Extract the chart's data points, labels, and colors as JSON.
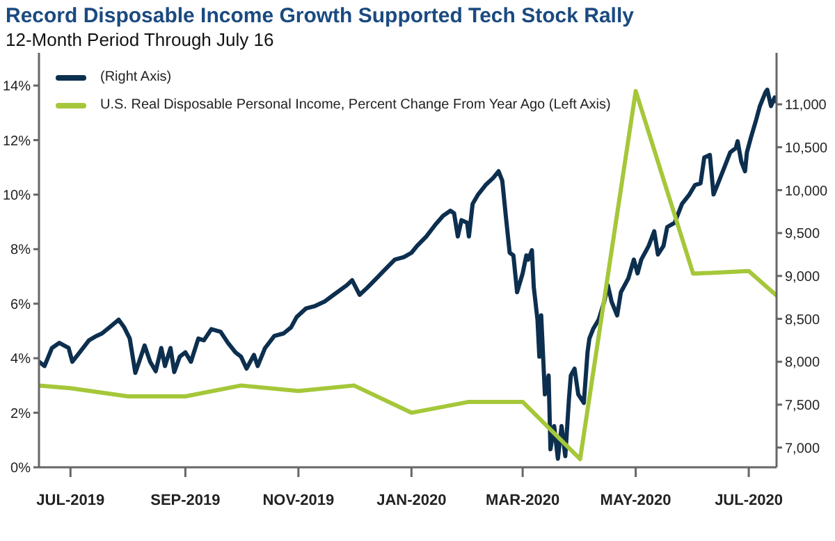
{
  "chart_data": {
    "type": "line",
    "title": "Record Disposable Income Growth Supported Tech Stock Rally",
    "subtitle": "12-Month Period Through July 16",
    "xlim": [
      "2019-06-14",
      "2020-07-16"
    ],
    "xticks": [
      {
        "value": "2019-07-01",
        "label": "JUL-2019"
      },
      {
        "value": "2019-09-01",
        "label": "SEP-2019"
      },
      {
        "value": "2019-11-01",
        "label": "NOV-2019"
      },
      {
        "value": "2020-01-01",
        "label": "JAN-2020"
      },
      {
        "value": "2020-03-01",
        "label": "MAR-2020"
      },
      {
        "value": "2020-05-01",
        "label": "MAY-2020"
      },
      {
        "value": "2020-07-01",
        "label": "JUL-2020"
      }
    ],
    "ylim": [
      0,
      15.2
    ],
    "yticks": [
      {
        "value": 0,
        "label": "0%"
      },
      {
        "value": 2,
        "label": "2%"
      },
      {
        "value": 4,
        "label": "4%"
      },
      {
        "value": 6,
        "label": "6%"
      },
      {
        "value": 8,
        "label": "8%"
      },
      {
        "value": 10,
        "label": "10%"
      },
      {
        "value": 12,
        "label": "12%"
      },
      {
        "value": 14,
        "label": "14%"
      }
    ],
    "y2lim": [
      6770,
      11600
    ],
    "y2ticks": [
      {
        "value": 7000,
        "label": "7,000"
      },
      {
        "value": 7500,
        "label": "7,500"
      },
      {
        "value": 8000,
        "label": "8,000"
      },
      {
        "value": 8500,
        "label": "8,500"
      },
      {
        "value": 9000,
        "label": "9,000"
      },
      {
        "value": 9500,
        "label": "9,500"
      },
      {
        "value": 10000,
        "label": "10,000"
      },
      {
        "value": 10500,
        "label": "10,500"
      },
      {
        "value": 11000,
        "label": "11,000"
      }
    ],
    "grid": false,
    "legend": "top left",
    "marker": "none",
    "line_style": "solid",
    "series": [
      {
        "name": "(Right Axis)",
        "color": "#0d2f4f",
        "axis": "y2",
        "x": [
          "2019-06-14",
          "2019-06-17",
          "2019-06-21",
          "2019-06-25",
          "2019-06-30",
          "2019-07-02",
          "2019-07-06",
          "2019-07-11",
          "2019-07-15",
          "2019-07-18",
          "2019-07-22",
          "2019-07-27",
          "2019-07-30",
          "2019-08-02",
          "2019-08-05",
          "2019-08-08",
          "2019-08-10",
          "2019-08-13",
          "2019-08-16",
          "2019-08-19",
          "2019-08-21",
          "2019-08-24",
          "2019-08-26",
          "2019-08-29",
          "2019-09-01",
          "2019-09-04",
          "2019-09-08",
          "2019-09-11",
          "2019-09-15",
          "2019-09-20",
          "2019-09-24",
          "2019-09-28",
          "2019-10-01",
          "2019-10-04",
          "2019-10-08",
          "2019-10-10",
          "2019-10-14",
          "2019-10-19",
          "2019-10-24",
          "2019-10-28",
          "2019-10-31",
          "2019-11-05",
          "2019-11-10",
          "2019-11-15",
          "2019-11-20",
          "2019-11-27",
          "2019-11-30",
          "2019-12-04",
          "2019-12-08",
          "2019-12-13",
          "2019-12-18",
          "2019-12-23",
          "2019-12-28",
          "2020-01-01",
          "2020-01-04",
          "2020-01-09",
          "2020-01-14",
          "2020-01-18",
          "2020-01-22",
          "2020-01-24",
          "2020-01-26",
          "2020-01-28",
          "2020-01-31",
          "2020-02-01",
          "2020-02-03",
          "2020-02-06",
          "2020-02-10",
          "2020-02-14",
          "2020-02-17",
          "2020-02-19",
          "2020-02-21",
          "2020-02-23",
          "2020-02-25",
          "2020-02-27",
          "2020-03-01",
          "2020-03-03",
          "2020-03-04",
          "2020-03-06",
          "2020-03-07",
          "2020-03-09",
          "2020-03-10",
          "2020-03-11",
          "2020-03-13",
          "2020-03-15",
          "2020-03-16",
          "2020-03-18",
          "2020-03-20",
          "2020-03-22",
          "2020-03-24",
          "2020-03-26",
          "2020-03-27",
          "2020-03-29",
          "2020-03-31",
          "2020-04-03",
          "2020-04-05",
          "2020-04-06",
          "2020-04-08",
          "2020-04-11",
          "2020-04-14",
          "2020-04-16",
          "2020-04-18",
          "2020-04-21",
          "2020-04-23",
          "2020-04-27",
          "2020-04-30",
          "2020-05-02",
          "2020-05-04",
          "2020-05-08",
          "2020-05-11",
          "2020-05-13",
          "2020-05-16",
          "2020-05-18",
          "2020-05-22",
          "2020-05-26",
          "2020-05-30",
          "2020-06-02",
          "2020-06-05",
          "2020-06-07",
          "2020-06-10",
          "2020-06-12",
          "2020-06-15",
          "2020-06-17",
          "2020-06-21",
          "2020-06-24",
          "2020-06-25",
          "2020-06-27",
          "2020-06-29",
          "2020-06-30",
          "2020-07-02",
          "2020-07-05",
          "2020-07-07",
          "2020-07-10",
          "2020-07-11",
          "2020-07-13",
          "2020-07-15",
          "2020-07-16"
        ],
        "values": [
          8000,
          7950,
          8160,
          8220,
          8160,
          8000,
          8110,
          8250,
          8300,
          8330,
          8400,
          8490,
          8400,
          8270,
          7870,
          8060,
          8190,
          8000,
          7890,
          8160,
          7950,
          8160,
          7880,
          8060,
          8110,
          8000,
          8270,
          8250,
          8380,
          8350,
          8220,
          8110,
          8060,
          7920,
          8080,
          7950,
          8160,
          8300,
          8330,
          8400,
          8520,
          8620,
          8650,
          8700,
          8780,
          8890,
          8950,
          8780,
          8860,
          8970,
          9080,
          9190,
          9220,
          9270,
          9350,
          9460,
          9600,
          9700,
          9760,
          9730,
          9460,
          9650,
          9620,
          9460,
          9840,
          9950,
          10060,
          10140,
          10220,
          10110,
          9680,
          9270,
          9240,
          8810,
          9030,
          9240,
          9190,
          9300,
          8870,
          8490,
          8060,
          8540,
          7620,
          7840,
          6980,
          7250,
          6870,
          7250,
          6900,
          7570,
          7840,
          7920,
          7620,
          7520,
          8110,
          8270,
          8380,
          8490,
          8700,
          8890,
          8700,
          8540,
          8810,
          8970,
          9190,
          9030,
          9190,
          9350,
          9520,
          9250,
          9350,
          9570,
          9620,
          9840,
          9950,
          10060,
          10080,
          10380,
          10410,
          9950,
          10110,
          10220,
          10440,
          10490,
          10570,
          10330,
          10220,
          10440,
          10600,
          10820,
          10980,
          11140,
          11170,
          10980,
          11080,
          11030
        ]
      },
      {
        "name": "U.S. Real Disposable Personal Income, Percent Change From Year Ago (Left Axis)",
        "color": "#a5c739",
        "x": [
          "2019-06-14",
          "2019-07-01",
          "2019-08-01",
          "2019-09-01",
          "2019-10-01",
          "2019-11-01",
          "2019-12-01",
          "2020-01-01",
          "2020-02-01",
          "2020-03-01",
          "2020-04-01",
          "2020-05-01",
          "2020-06-01",
          "2020-07-01",
          "2020-07-16"
        ],
        "values": [
          3.0,
          2.9,
          2.6,
          2.6,
          3.0,
          2.8,
          3.0,
          2.0,
          2.4,
          2.4,
          0.3,
          13.8,
          7.1,
          7.2,
          6.3
        ]
      }
    ]
  }
}
